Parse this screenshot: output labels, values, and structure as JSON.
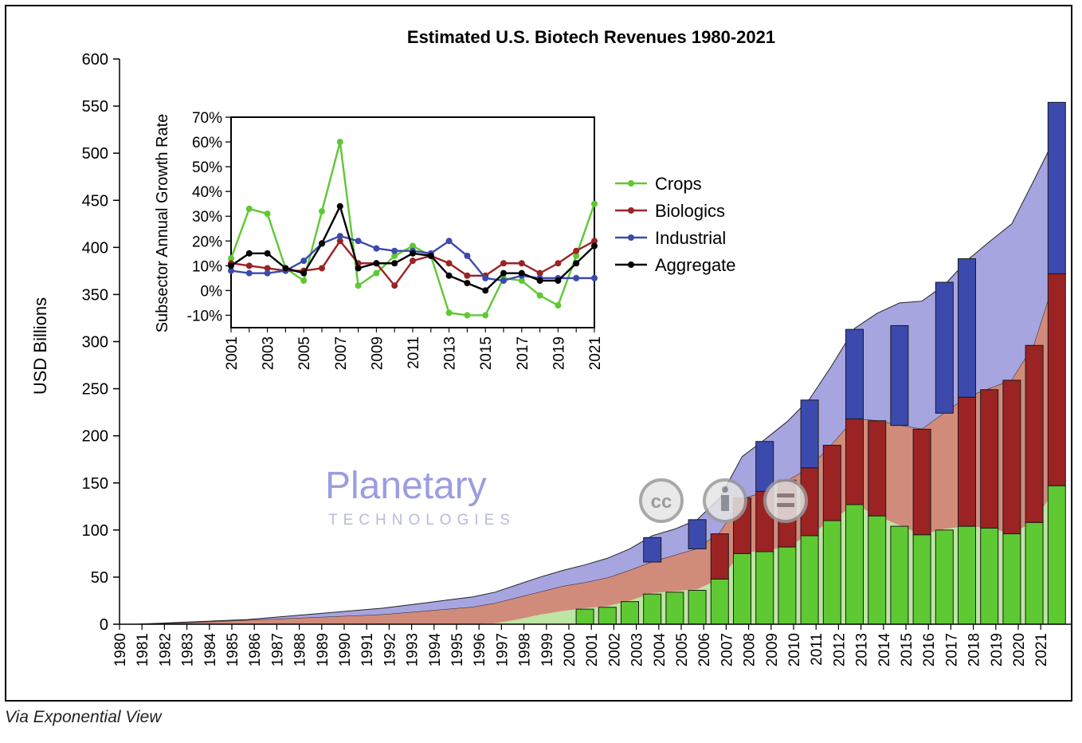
{
  "caption": "Via Exponential View",
  "watermark": {
    "brand": "Planetary",
    "sub": "TECHNOLOGIES",
    "license_badges": [
      "cc-icon",
      "by-icon",
      "nd-icon"
    ]
  },
  "colors": {
    "crops": "#5ec932",
    "crops_area": "#bde5a4",
    "biologics": "#9b2323",
    "biologics_area": "#d18b7b",
    "industrial": "#3c4aad",
    "industrial_area": "#a7a5e0",
    "aggregate": "#000000"
  },
  "chart_data": [
    {
      "type": "bar",
      "title": "Estimated U.S. Biotech Revenues 1980-2021",
      "ylabel": "USD Billions",
      "xlabel": "",
      "ylim": [
        0,
        600
      ],
      "yticks": [
        0,
        50,
        100,
        150,
        200,
        250,
        300,
        350,
        400,
        450,
        500,
        550,
        600
      ],
      "grid": false,
      "categories": [
        "1980",
        "1981",
        "1982",
        "1983",
        "1984",
        "1985",
        "1986",
        "1987",
        "1988",
        "1989",
        "1990",
        "1991",
        "1992",
        "1993",
        "1994",
        "1995",
        "1996",
        "1997",
        "1998",
        "1999",
        "2000",
        "2001",
        "2002",
        "2003",
        "2004",
        "2005",
        "2006",
        "2007",
        "2008",
        "2009",
        "2010",
        "2011",
        "2012",
        "2013",
        "2014",
        "2015",
        "2016",
        "2017",
        "2018",
        "2019",
        "2020",
        "2021"
      ],
      "stacked_area_cumulative": {
        "crops": [
          0,
          0,
          0,
          0,
          0,
          0,
          0,
          0,
          0,
          0,
          0,
          0,
          0,
          0,
          0,
          0,
          1,
          5,
          10,
          14,
          17,
          19,
          25,
          33,
          35,
          37,
          48,
          76,
          78,
          82,
          95,
          110,
          127,
          115,
          105,
          95,
          101,
          104,
          102,
          96,
          109,
          146
        ],
        "biologics_top": [
          0,
          0.5,
          1,
          2,
          3,
          4,
          5,
          6,
          7,
          8,
          9,
          10,
          12,
          14,
          16,
          18,
          22,
          28,
          34,
          40,
          44,
          49,
          57,
          66,
          73,
          80,
          97,
          133,
          140,
          152,
          166,
          191,
          218,
          216,
          211,
          207,
          224,
          241,
          250,
          259,
          297,
          372
        ],
        "industrial_top": [
          0,
          1,
          2,
          3,
          4,
          5,
          7,
          9,
          11,
          13,
          15,
          17,
          20,
          23,
          26,
          29,
          34,
          42,
          50,
          57,
          63,
          70,
          80,
          94,
          101,
          111,
          134,
          178,
          196,
          215,
          239,
          275,
          314,
          330,
          341,
          343,
          360,
          386,
          406,
          425,
          472,
          520
        ]
      },
      "bars": {
        "crops": [
          null,
          null,
          null,
          null,
          null,
          null,
          null,
          null,
          null,
          null,
          null,
          null,
          null,
          null,
          null,
          null,
          null,
          null,
          null,
          null,
          16,
          18,
          24,
          32,
          34,
          36,
          48,
          75,
          77,
          82,
          94,
          110,
          127,
          115,
          104,
          95,
          100,
          104,
          102,
          96,
          108,
          147
        ],
        "biologics": [
          null,
          null,
          null,
          null,
          null,
          null,
          null,
          null,
          null,
          null,
          null,
          null,
          null,
          null,
          null,
          null,
          null,
          null,
          null,
          null,
          null,
          null,
          null,
          null,
          null,
          null,
          48,
          59,
          64,
          71,
          72,
          80,
          91,
          101,
          null,
          112,
          null,
          137,
          147,
          163,
          188,
          225
        ],
        "industrial": [
          null,
          null,
          null,
          null,
          null,
          null,
          null,
          null,
          null,
          null,
          null,
          null,
          null,
          null,
          null,
          null,
          null,
          null,
          null,
          null,
          null,
          null,
          null,
          26,
          null,
          31,
          null,
          null,
          53,
          null,
          72,
          null,
          95,
          null,
          106,
          null,
          139,
          147,
          null,
          null,
          null,
          182
        ]
      }
    },
    {
      "type": "line",
      "ylabel": "Subsector Annual Growth Rate",
      "xlabel": "",
      "ylim": [
        -15,
        70
      ],
      "yticks": [
        -10,
        0,
        10,
        20,
        30,
        40,
        50,
        60,
        70
      ],
      "ytick_labels": [
        "-10%",
        "0%",
        "10%",
        "20%",
        "30%",
        "40%",
        "50%",
        "60%",
        "70%"
      ],
      "xticks": [
        "2001",
        "2003",
        "2005",
        "2007",
        "2009",
        "2011",
        "2013",
        "2015",
        "2017",
        "2019",
        "2021"
      ],
      "x": [
        2001,
        2002,
        2003,
        2004,
        2005,
        2006,
        2007,
        2008,
        2009,
        2010,
        2011,
        2012,
        2013,
        2014,
        2015,
        2016,
        2017,
        2018,
        2019,
        2020,
        2021
      ],
      "legend_position": "right",
      "grid": false,
      "series": [
        {
          "name": "Crops",
          "color": "#5ec932",
          "values": [
            13,
            33,
            31,
            9,
            4,
            32,
            60,
            2,
            7,
            14,
            18,
            14,
            -9,
            -10,
            -10,
            5,
            4,
            -2,
            -6,
            14,
            35
          ]
        },
        {
          "name": "Biologics",
          "color": "#9b2323",
          "values": [
            11,
            10,
            9,
            8,
            8,
            9,
            20,
            11,
            11,
            2,
            12,
            14,
            11,
            6,
            6,
            11,
            11,
            7,
            11,
            16,
            20
          ]
        },
        {
          "name": "Industrial",
          "color": "#3c4aad",
          "values": [
            8,
            7,
            7,
            8,
            12,
            19,
            22,
            20,
            17,
            16,
            16,
            15,
            20,
            14,
            5,
            4,
            6,
            5,
            5,
            5,
            5
          ]
        },
        {
          "name": "Aggregate",
          "color": "#000000",
          "values": [
            10,
            15,
            15,
            9,
            7,
            19,
            34,
            9,
            11,
            11,
            15,
            14,
            6,
            3,
            0,
            7,
            7,
            4,
            4,
            11,
            18
          ]
        }
      ]
    }
  ]
}
